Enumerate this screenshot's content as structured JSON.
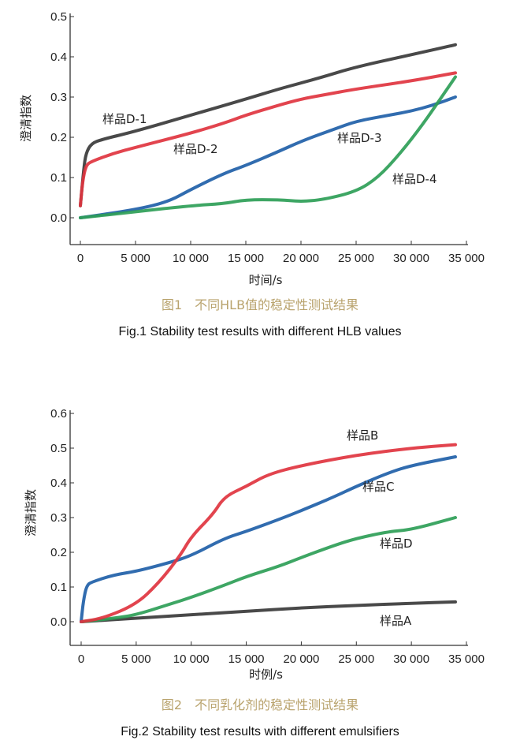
{
  "chart_data": [
    {
      "type": "line",
      "title_cn": "图1　不同HLB值的稳定性测试结果",
      "title_en": "Fig.1   Stability test results with different HLB values",
      "xlabel": "时间/s",
      "ylabel": "澄清指数",
      "xlim": [
        0,
        35000
      ],
      "ylim": [
        0.0,
        0.5
      ],
      "xticks": [
        0,
        5000,
        10000,
        15000,
        20000,
        25000,
        30000,
        35000
      ],
      "xtick_labels": [
        "0",
        "5 000",
        "10 000",
        "15 000",
        "20 000",
        "25 000",
        "30 000",
        "35 000"
      ],
      "yticks": [
        0.0,
        0.1,
        0.2,
        0.3,
        0.4,
        0.5
      ],
      "ytick_labels": [
        "0.0",
        "0.1",
        "0.2",
        "0.3",
        "0.4",
        "0.5"
      ],
      "grid": false,
      "series": [
        {
          "name": "样品D-1",
          "color": "#3a3a3a",
          "x": [
            0,
            300,
            500,
            1000,
            2000,
            5000,
            10000,
            15000,
            18000,
            20000,
            22000,
            25000,
            30000,
            34000
          ],
          "y": [
            0.03,
            0.12,
            0.16,
            0.185,
            0.195,
            0.215,
            0.255,
            0.295,
            0.32,
            0.335,
            0.35,
            0.375,
            0.405,
            0.43
          ]
        },
        {
          "name": "样品D-2",
          "color": "#e0343f",
          "x": [
            0,
            200,
            500,
            1000,
            3000,
            5000,
            10000,
            13000,
            15000,
            18000,
            20000,
            22000,
            25000,
            30000,
            34000
          ],
          "y": [
            0.03,
            0.09,
            0.13,
            0.14,
            0.16,
            0.175,
            0.21,
            0.235,
            0.255,
            0.28,
            0.295,
            0.305,
            0.32,
            0.34,
            0.36
          ]
        },
        {
          "name": "样品D-3",
          "color": "#1f5fa8",
          "x": [
            0,
            5000,
            8000,
            10000,
            13000,
            15000,
            18000,
            20000,
            23000,
            25000,
            28000,
            30000,
            32000,
            34000
          ],
          "y": [
            0.0,
            0.02,
            0.04,
            0.07,
            0.11,
            0.13,
            0.165,
            0.19,
            0.22,
            0.24,
            0.255,
            0.265,
            0.28,
            0.3
          ]
        },
        {
          "name": "样品D-4",
          "color": "#2e9e57",
          "x": [
            0,
            5000,
            10000,
            13000,
            15000,
            18000,
            20000,
            22000,
            25000,
            27000,
            29000,
            31000,
            33000,
            34000
          ],
          "y": [
            0.0,
            0.015,
            0.03,
            0.035,
            0.045,
            0.045,
            0.04,
            0.045,
            0.065,
            0.1,
            0.16,
            0.23,
            0.31,
            0.35
          ]
        }
      ]
    },
    {
      "type": "line",
      "title_cn": "图2　不同乳化剂的稳定性测试结果",
      "title_en": "Fig.2   Stability test results with different emulsifiers",
      "xlabel": "时例/s",
      "ylabel": "澄清指数",
      "xlim": [
        0,
        35000
      ],
      "ylim": [
        0.0,
        0.6
      ],
      "xticks": [
        0,
        5000,
        10000,
        15000,
        20000,
        25000,
        30000,
        35000
      ],
      "xtick_labels": [
        "0",
        "5 000",
        "10 000",
        "15 000",
        "20 000",
        "25 000",
        "30 000",
        "35 000"
      ],
      "yticks": [
        0.0,
        0.1,
        0.2,
        0.3,
        0.4,
        0.5,
        0.6
      ],
      "ytick_labels": [
        "0.0",
        "0.1",
        "0.2",
        "0.3",
        "0.4",
        "0.5",
        "0.6"
      ],
      "grid": false,
      "series": [
        {
          "name": "样品A",
          "color": "#3a3a3a",
          "x": [
            0,
            5000,
            10000,
            15000,
            20000,
            25000,
            30000,
            34000
          ],
          "y": [
            0.0,
            0.01,
            0.02,
            0.03,
            0.04,
            0.047,
            0.053,
            0.057
          ]
        },
        {
          "name": "样品D",
          "color": "#2e9e57",
          "x": [
            0,
            3000,
            5000,
            8000,
            10000,
            13000,
            15000,
            18000,
            20000,
            23000,
            25000,
            28000,
            30000,
            34000
          ],
          "y": [
            0.0,
            0.01,
            0.02,
            0.05,
            0.07,
            0.105,
            0.13,
            0.16,
            0.185,
            0.22,
            0.24,
            0.26,
            0.265,
            0.3
          ]
        },
        {
          "name": "样品C",
          "color": "#1f5fa8",
          "x": [
            0,
            200,
            500,
            1000,
            3000,
            5000,
            8000,
            10000,
            13000,
            15000,
            18000,
            20000,
            23000,
            25000,
            28000,
            30000,
            34000
          ],
          "y": [
            0.0,
            0.06,
            0.105,
            0.115,
            0.135,
            0.145,
            0.17,
            0.19,
            0.24,
            0.26,
            0.295,
            0.32,
            0.36,
            0.39,
            0.43,
            0.45,
            0.475
          ]
        },
        {
          "name": "样品B",
          "color": "#e0343f",
          "x": [
            0,
            2000,
            5000,
            7000,
            9000,
            10000,
            12000,
            13000,
            15000,
            17000,
            20000,
            25000,
            30000,
            34000
          ],
          "y": [
            0.0,
            0.01,
            0.05,
            0.11,
            0.19,
            0.245,
            0.31,
            0.36,
            0.39,
            0.425,
            0.45,
            0.48,
            0.5,
            0.51
          ]
        }
      ]
    }
  ]
}
